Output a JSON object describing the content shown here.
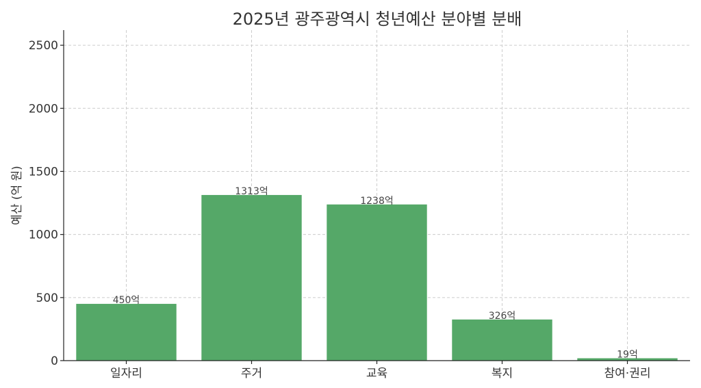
{
  "chart_data": {
    "type": "bar",
    "title": "2025년 광주광역시 청년예산 분야별 분배",
    "xlabel": "",
    "ylabel": "예산 (억 원)",
    "categories": [
      "일자리",
      "주거",
      "교육",
      "복지",
      "참여·권리"
    ],
    "values": [
      450,
      1313,
      1238,
      326,
      19
    ],
    "data_labels": [
      "450억",
      "1313억",
      "1238억",
      "326억",
      "19억"
    ],
    "ylim": [
      0,
      2620
    ],
    "yticks": [
      0,
      500,
      1000,
      1500,
      2000,
      2500
    ],
    "grid": true,
    "bar_color": "#55a868"
  }
}
